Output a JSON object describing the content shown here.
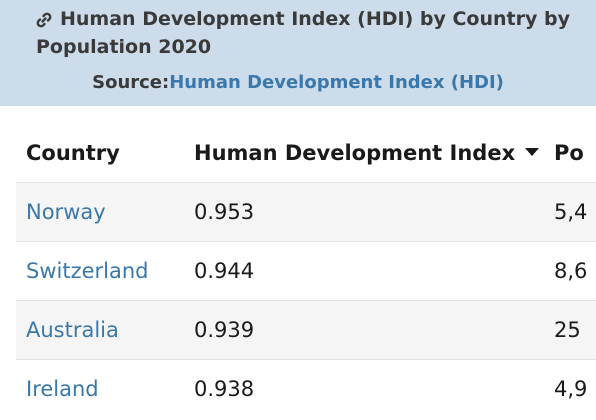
{
  "header": {
    "title": "Human Development Index (HDI) by Country by Population 2020",
    "source_label": "Source:",
    "source_link": "Human Development Index (HDI)"
  },
  "table": {
    "columns": [
      "Country",
      "Human Development Index",
      "Po"
    ],
    "rows": [
      {
        "country": "Norway",
        "hdi": "0.953",
        "pop": "5,4"
      },
      {
        "country": "Switzerland",
        "hdi": "0.944",
        "pop": "8,6"
      },
      {
        "country": "Australia",
        "hdi": "0.939",
        "pop": "25"
      },
      {
        "country": "Ireland",
        "hdi": "0.938",
        "pop": "4,9"
      }
    ]
  },
  "colors": {
    "header_bg": "#ccdcea",
    "link": "#3a78ab",
    "row_alt": "#f5f5f5"
  },
  "icons": {
    "title_icon": "link-icon",
    "sort_icon": "sort-descending-icon"
  }
}
